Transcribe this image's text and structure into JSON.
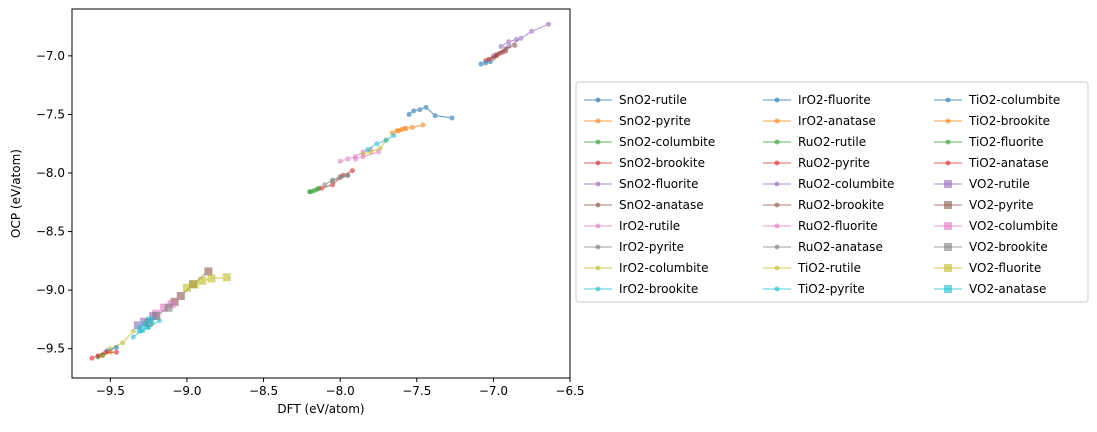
{
  "chart_data": {
    "type": "scatter",
    "xlabel": "DFT (eV/atom)",
    "ylabel": "OCP (eV/atom)",
    "xlim": [
      -9.75,
      -6.5
    ],
    "ylim": [
      -9.75,
      -6.6
    ],
    "xticks": [
      "−9.5",
      "−9.0",
      "−8.5",
      "−8.0",
      "−7.5",
      "−7.0",
      "−6.5"
    ],
    "xtick_values": [
      -9.5,
      -9.0,
      -8.5,
      -8.0,
      -7.5,
      -7.0,
      -6.5
    ],
    "yticks": [
      "−7.0",
      "−7.5",
      "−8.0",
      "−8.5",
      "−9.0",
      "−9.5"
    ],
    "ytick_values": [
      -7.0,
      -7.5,
      -8.0,
      -8.5,
      -9.0,
      -9.5
    ],
    "grid": false,
    "legend_placement": "right",
    "series": [
      {
        "name": "SnO2-rutile",
        "color": "#1f77b4",
        "marker": "circle",
        "points": [
          [
            -7.55,
            -7.5
          ],
          [
            -7.52,
            -7.47
          ],
          [
            -7.48,
            -7.46
          ],
          [
            -7.44,
            -7.44
          ],
          [
            -7.38,
            -7.51
          ],
          [
            -7.27,
            -7.53
          ]
        ]
      },
      {
        "name": "SnO2-pyrite",
        "color": "#ff7f0e",
        "marker": "circle",
        "points": [
          [
            -7.66,
            -7.66
          ],
          [
            -7.63,
            -7.64
          ],
          [
            -7.6,
            -7.63
          ],
          [
            -7.57,
            -7.62
          ],
          [
            -7.53,
            -7.61
          ],
          [
            -7.46,
            -7.59
          ]
        ]
      },
      {
        "name": "SnO2-columbite",
        "color": "#2ca02c",
        "marker": "circle",
        "points": [
          [
            -8.2,
            -8.16
          ],
          [
            -8.17,
            -8.15
          ],
          [
            -8.14,
            -8.13
          ]
        ]
      },
      {
        "name": "SnO2-brookite",
        "color": "#d62728",
        "marker": "circle",
        "points": [
          [
            -8.12,
            -8.13
          ],
          [
            -8.05,
            -8.1
          ],
          [
            -7.98,
            -8.02
          ],
          [
            -7.92,
            -7.98
          ]
        ]
      },
      {
        "name": "SnO2-fluorite",
        "color": "#9467bd",
        "marker": "circle",
        "points": [
          [
            -7.0,
            -7.0
          ],
          [
            -6.9,
            -6.92
          ],
          [
            -6.82,
            -6.85
          ],
          [
            -6.75,
            -6.79
          ],
          [
            -6.64,
            -6.73
          ]
        ]
      },
      {
        "name": "SnO2-anatase",
        "color": "#8c564b",
        "marker": "circle",
        "points": [
          [
            -7.05,
            -7.04
          ],
          [
            -6.98,
            -6.99
          ],
          [
            -6.92,
            -6.94
          ],
          [
            -6.86,
            -6.91
          ]
        ]
      },
      {
        "name": "IrO2-rutile",
        "color": "#e377c2",
        "marker": "circle",
        "points": [
          [
            -8.0,
            -7.9
          ],
          [
            -7.95,
            -7.88
          ],
          [
            -7.9,
            -7.86
          ],
          [
            -7.85,
            -7.82
          ],
          [
            -7.8,
            -7.8
          ]
        ]
      },
      {
        "name": "IrO2-pyrite",
        "color": "#7f7f7f",
        "marker": "circle",
        "points": [
          [
            -8.1,
            -8.1
          ],
          [
            -8.05,
            -8.06
          ],
          [
            -8.0,
            -8.03
          ],
          [
            -7.95,
            -8.02
          ]
        ]
      },
      {
        "name": "IrO2-columbite",
        "color": "#bcbd22",
        "marker": "circle",
        "points": [
          [
            -7.85,
            -7.84
          ],
          [
            -7.8,
            -7.82
          ],
          [
            -7.74,
            -7.79
          ],
          [
            -7.7,
            -7.72
          ]
        ]
      },
      {
        "name": "IrO2-brookite",
        "color": "#17becf",
        "marker": "circle",
        "points": [
          [
            -7.82,
            -7.8
          ],
          [
            -7.76,
            -7.75
          ],
          [
            -7.7,
            -7.72
          ],
          [
            -7.65,
            -7.68
          ]
        ]
      },
      {
        "name": "IrO2-fluorite",
        "color": "#1f77b4",
        "marker": "circle",
        "points": [
          [
            -7.08,
            -7.07
          ],
          [
            -7.05,
            -7.06
          ],
          [
            -7.02,
            -7.05
          ]
        ]
      },
      {
        "name": "IrO2-anatase",
        "color": "#ff7f0e",
        "marker": "circle",
        "points": [
          [
            -7.62,
            -7.64
          ],
          [
            -7.58,
            -7.62
          ]
        ]
      },
      {
        "name": "RuO2-rutile",
        "color": "#2ca02c",
        "marker": "circle",
        "points": [
          [
            -8.19,
            -8.16
          ],
          [
            -8.15,
            -8.14
          ]
        ]
      },
      {
        "name": "RuO2-pyrite",
        "color": "#d62728",
        "marker": "circle",
        "points": [
          [
            -7.03,
            -7.03
          ],
          [
            -6.98,
            -7.0
          ],
          [
            -6.94,
            -6.97
          ]
        ]
      },
      {
        "name": "RuO2-columbite",
        "color": "#9467bd",
        "marker": "circle",
        "points": [
          [
            -6.95,
            -6.92
          ],
          [
            -6.9,
            -6.88
          ],
          [
            -6.85,
            -6.86
          ]
        ]
      },
      {
        "name": "RuO2-brookite",
        "color": "#8c564b",
        "marker": "circle",
        "points": [
          [
            -7.0,
            -7.02
          ],
          [
            -6.96,
            -6.98
          ],
          [
            -6.92,
            -6.96
          ]
        ]
      },
      {
        "name": "RuO2-fluorite",
        "color": "#e377c2",
        "marker": "circle",
        "points": [
          [
            -7.9,
            -7.88
          ],
          [
            -7.85,
            -7.86
          ],
          [
            -7.75,
            -7.82
          ]
        ]
      },
      {
        "name": "RuO2-anatase",
        "color": "#7f7f7f",
        "marker": "circle",
        "points": [
          [
            -8.05,
            -8.07
          ],
          [
            -8.0,
            -8.04
          ],
          [
            -7.95,
            -8.02
          ]
        ]
      },
      {
        "name": "TiO2-rutile",
        "color": "#bcbd22",
        "marker": "circle",
        "points": [
          [
            -9.5,
            -9.5
          ],
          [
            -9.42,
            -9.45
          ],
          [
            -9.35,
            -9.35
          ]
        ]
      },
      {
        "name": "TiO2-pyrite",
        "color": "#17becf",
        "marker": "circle",
        "points": [
          [
            -9.35,
            -9.4
          ],
          [
            -9.3,
            -9.35
          ],
          [
            -9.25,
            -9.32
          ],
          [
            -9.18,
            -9.26
          ]
        ]
      },
      {
        "name": "TiO2-columbite",
        "color": "#1f77b4",
        "marker": "circle",
        "points": [
          [
            -9.52,
            -9.52
          ],
          [
            -9.46,
            -9.49
          ]
        ]
      },
      {
        "name": "TiO2-brookite",
        "color": "#ff7f0e",
        "marker": "circle",
        "points": [
          [
            -9.55,
            -9.56
          ],
          [
            -9.5,
            -9.53
          ]
        ]
      },
      {
        "name": "TiO2-fluorite",
        "color": "#2ca02c",
        "marker": "circle",
        "points": [
          [
            -9.58,
            -9.57
          ],
          [
            -9.55,
            -9.55
          ]
        ]
      },
      {
        "name": "TiO2-anatase",
        "color": "#d62728",
        "marker": "circle",
        "points": [
          [
            -9.62,
            -9.58
          ],
          [
            -9.58,
            -9.56
          ],
          [
            -9.53,
            -9.53
          ],
          [
            -9.46,
            -9.53
          ]
        ]
      },
      {
        "name": "VO2-rutile",
        "color": "#9467bd",
        "marker": "square",
        "points": [
          [
            -9.32,
            -9.3
          ],
          [
            -9.28,
            -9.27
          ],
          [
            -9.22,
            -9.22
          ]
        ]
      },
      {
        "name": "VO2-pyrite",
        "color": "#8c564b",
        "marker": "square",
        "points": [
          [
            -9.08,
            -9.1
          ],
          [
            -9.04,
            -9.05
          ],
          [
            -8.96,
            -8.95
          ],
          [
            -8.86,
            -8.84
          ]
        ]
      },
      {
        "name": "VO2-columbite",
        "color": "#e377c2",
        "marker": "square",
        "points": [
          [
            -9.2,
            -9.2
          ],
          [
            -9.15,
            -9.15
          ],
          [
            -9.1,
            -9.12
          ]
        ]
      },
      {
        "name": "VO2-brookite",
        "color": "#7f7f7f",
        "marker": "square",
        "points": [
          [
            -9.25,
            -9.28
          ],
          [
            -9.2,
            -9.22
          ],
          [
            -9.12,
            -9.15
          ]
        ]
      },
      {
        "name": "VO2-fluorite",
        "color": "#bcbd22",
        "marker": "square",
        "points": [
          [
            -9.0,
            -8.98
          ],
          [
            -8.95,
            -8.95
          ],
          [
            -8.9,
            -8.92
          ],
          [
            -8.84,
            -8.9
          ],
          [
            -8.74,
            -8.89
          ]
        ]
      },
      {
        "name": "VO2-anatase",
        "color": "#17becf",
        "marker": "square",
        "points": [
          [
            -9.3,
            -9.33
          ],
          [
            -9.27,
            -9.3
          ],
          [
            -9.24,
            -9.26
          ]
        ]
      }
    ]
  }
}
